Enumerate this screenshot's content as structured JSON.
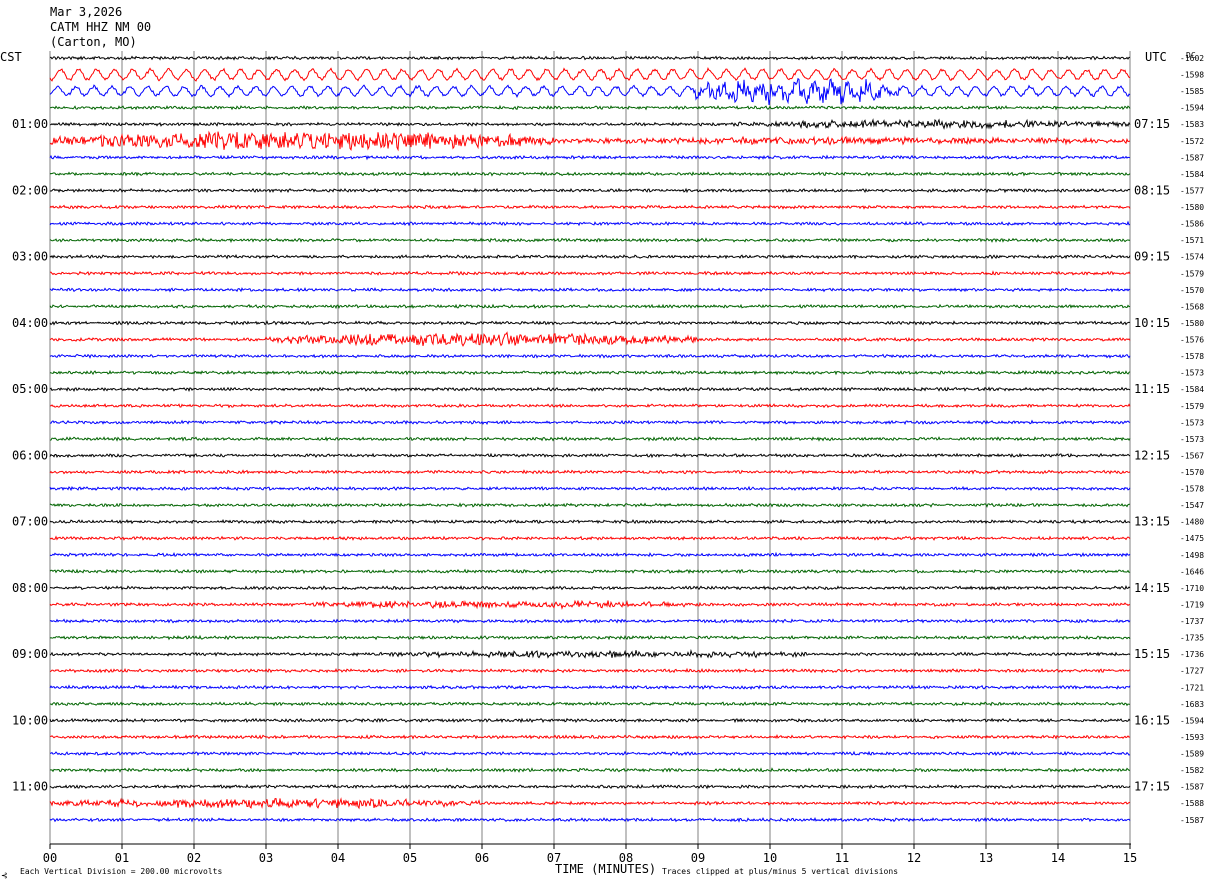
{
  "header": {
    "date": "Mar 3,2026",
    "station": "CATM HHZ NM 00",
    "location": "(Carton, MO)"
  },
  "left_zone": "CST",
  "right_zone": "UTC",
  "dc_header": "DC",
  "footer": {
    "corner_mark": "⊰",
    "scale": "Each Vertical Division =  200.00 microvolts",
    "clip": "Traces clipped at plus/minus 5 vertical divisions"
  },
  "chart_data": {
    "type": "line",
    "xlabel": "TIME (MINUTES)",
    "xlim": [
      0,
      15
    ],
    "x_ticks": [
      "00",
      "01",
      "02",
      "03",
      "04",
      "05",
      "06",
      "07",
      "08",
      "09",
      "10",
      "11",
      "12",
      "13",
      "14",
      "15"
    ],
    "series_colors": [
      "#000000",
      "#ff0000",
      "#0000ff",
      "#006400"
    ],
    "left_hour_labels": [
      {
        "row": 4,
        "text": "01:00"
      },
      {
        "row": 8,
        "text": "02:00"
      },
      {
        "row": 12,
        "text": "03:00"
      },
      {
        "row": 16,
        "text": "04:00"
      },
      {
        "row": 20,
        "text": "05:00"
      },
      {
        "row": 24,
        "text": "06:00"
      },
      {
        "row": 28,
        "text": "07:00"
      },
      {
        "row": 32,
        "text": "08:00"
      },
      {
        "row": 36,
        "text": "09:00"
      },
      {
        "row": 40,
        "text": "10:00"
      },
      {
        "row": 44,
        "text": "11:00"
      }
    ],
    "right_hour_labels": [
      {
        "row": 4,
        "text": "07:15"
      },
      {
        "row": 8,
        "text": "08:15"
      },
      {
        "row": 12,
        "text": "09:15"
      },
      {
        "row": 16,
        "text": "10:15"
      },
      {
        "row": 20,
        "text": "11:15"
      },
      {
        "row": 24,
        "text": "12:15"
      },
      {
        "row": 28,
        "text": "13:15"
      },
      {
        "row": 32,
        "text": "14:15"
      },
      {
        "row": 36,
        "text": "15:15"
      },
      {
        "row": 40,
        "text": "16:15"
      },
      {
        "row": 44,
        "text": "17:15"
      }
    ],
    "dc_offsets": [
      "-1602",
      "-1598",
      "-1585",
      "-1594",
      "-1583",
      "-1572",
      "-1587",
      "-1584",
      "-1577",
      "-1580",
      "-1586",
      "-1571",
      "-1574",
      "-1579",
      "-1570",
      "-1568",
      "-1580",
      "-1576",
      "-1578",
      "-1573",
      "-1584",
      "-1579",
      "-1573",
      "-1573",
      "-1567",
      "-1570",
      "-1578",
      "-1547",
      "-1480",
      "-1475",
      "-1498",
      "-1646",
      "-1710",
      "-1719",
      "-1737",
      "-1735",
      "-1736",
      "-1727",
      "-1721",
      "-1683",
      "-1594",
      "-1593",
      "-1589",
      "-1582",
      "-1587",
      "-1588",
      "-1587"
    ],
    "bursts": [
      {
        "row": 1,
        "start": 0,
        "end": 15,
        "amp": 2.2,
        "freq": 0.25,
        "kind": "wave"
      },
      {
        "row": 2,
        "start": 0,
        "end": 15,
        "amp": 2.0,
        "freq": 0.25,
        "kind": "wave"
      },
      {
        "row": 2,
        "start": 8.9,
        "end": 11.8,
        "amp": 4.5,
        "freq": 3.0,
        "kind": "noise"
      },
      {
        "row": 4,
        "start": 9.5,
        "end": 15,
        "amp": 1.6,
        "freq": 3.0,
        "kind": "noise"
      },
      {
        "row": 5,
        "start": 0,
        "end": 7,
        "amp": 4.0,
        "freq": 3.0,
        "kind": "noise"
      },
      {
        "row": 5,
        "start": 7,
        "end": 15,
        "amp": 1.2,
        "freq": 3.0,
        "kind": "noise"
      },
      {
        "row": 17,
        "start": 3,
        "end": 9,
        "amp": 2.6,
        "freq": 3.0,
        "kind": "noise"
      },
      {
        "row": 33,
        "start": 3.5,
        "end": 9,
        "amp": 1.4,
        "freq": 3.0,
        "kind": "noise"
      },
      {
        "row": 36,
        "start": 4.5,
        "end": 10.5,
        "amp": 1.2,
        "freq": 3.0,
        "kind": "noise"
      },
      {
        "row": 45,
        "start": 0,
        "end": 6,
        "amp": 1.8,
        "freq": 3.0,
        "kind": "noise"
      }
    ]
  }
}
